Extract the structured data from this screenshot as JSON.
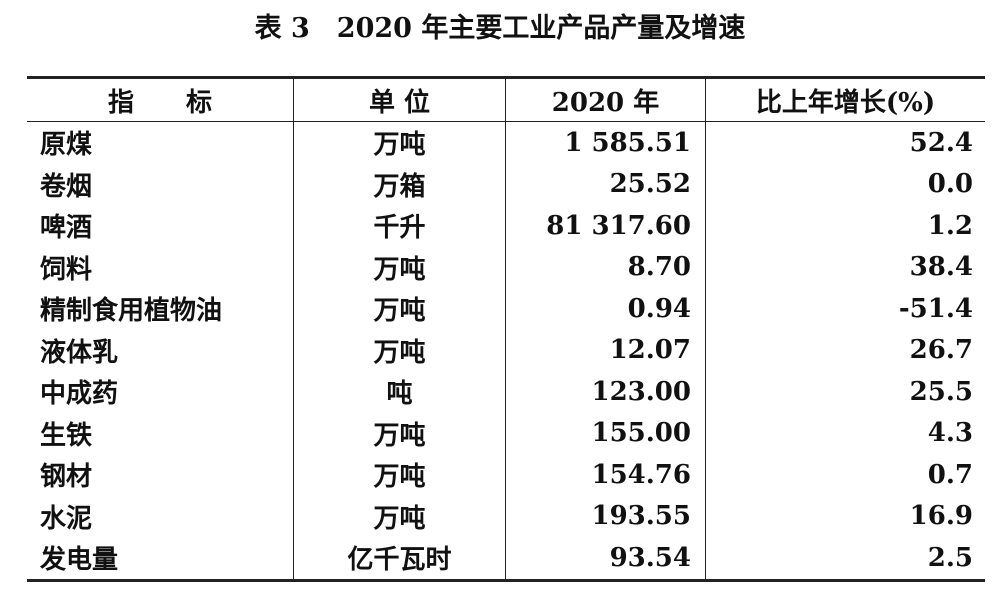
{
  "title": "表 3　2020 年主要工业产品产量及增速",
  "table": {
    "header": [
      "指　　标",
      "单 位",
      "2020 年",
      "比上年增长(%)"
    ],
    "rows": [
      [
        "原煤",
        "万吨",
        "1 585.51",
        "52.4"
      ],
      [
        "卷烟",
        "万箱",
        "25.52",
        "0.0"
      ],
      [
        "啤酒",
        "千升",
        "81 317.60",
        "1.2"
      ],
      [
        "饲料",
        "万吨",
        "8.70",
        "38.4"
      ],
      [
        "精制食用植物油",
        "万吨",
        "0.94",
        "-51.4"
      ],
      [
        "液体乳",
        "万吨",
        "12.07",
        "26.7"
      ],
      [
        "中成药",
        "吨",
        "123.00",
        "25.5"
      ],
      [
        "生铁",
        "万吨",
        "155.00",
        "4.3"
      ],
      [
        "钢材",
        "万吨",
        "154.76",
        "0.7"
      ],
      [
        "水泥",
        "万吨",
        "193.55",
        "16.9"
      ],
      [
        "发电量",
        "亿千瓦时",
        "93.54",
        "2.5"
      ]
    ]
  }
}
